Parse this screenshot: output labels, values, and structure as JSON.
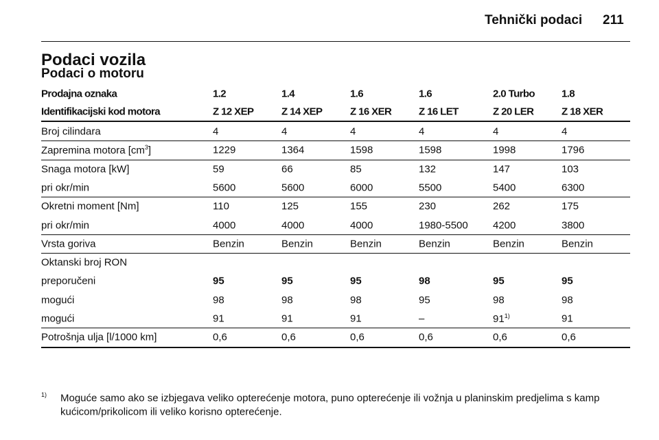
{
  "header": {
    "section": "Tehnički podaci",
    "page": "211"
  },
  "title": "Podaci vozila",
  "subtitle": "Podaci o motoru",
  "table": {
    "head": [
      {
        "label": "Prodajna oznaka",
        "values": [
          "1.2",
          "1.4",
          "1.6",
          "1.6",
          "2.0 Turbo",
          "1.8"
        ]
      },
      {
        "label": "Identifikacijski kod motora",
        "values": [
          "Z 12 XEP",
          "Z 14 XEP",
          "Z 16 XER",
          "Z 16 LET",
          "Z 20 LER",
          "Z 18 XER"
        ]
      }
    ],
    "groups": [
      [
        {
          "label": "Broj cilindara",
          "values": [
            "4",
            "4",
            "4",
            "4",
            "4",
            "4"
          ]
        }
      ],
      [
        {
          "label": {
            "text": "Zapremina motora [cm",
            "sup": "3",
            "after": "]"
          },
          "values": [
            "1229",
            "1364",
            "1598",
            "1598",
            "1998",
            "1796"
          ]
        }
      ],
      [
        {
          "label": "Snaga motora [kW]",
          "values": [
            "59",
            "66",
            "85",
            "132",
            "147",
            "103"
          ]
        },
        {
          "label": "pri okr/min",
          "values": [
            "5600",
            "5600",
            "6000",
            "5500",
            "5400",
            "6300"
          ]
        }
      ],
      [
        {
          "label": "Okretni moment [Nm]",
          "values": [
            "110",
            "125",
            "155",
            "230",
            "262",
            "175"
          ]
        },
        {
          "label": "pri okr/min",
          "values": [
            "4000",
            "4000",
            "4000",
            "1980-5500",
            "4200",
            "3800"
          ]
        }
      ],
      [
        {
          "label": "Vrsta goriva",
          "values": [
            "Benzin",
            "Benzin",
            "Benzin",
            "Benzin",
            "Benzin",
            "Benzin"
          ]
        }
      ],
      [
        {
          "label": "Oktanski broj RON",
          "values": []
        },
        {
          "label": "preporučeni",
          "bold": true,
          "values": [
            "95",
            "95",
            "95",
            "98",
            "95",
            "95"
          ]
        },
        {
          "label": "mogući",
          "values": [
            "98",
            "98",
            "98",
            "95",
            "98",
            "98"
          ]
        },
        {
          "label": "mogući",
          "values": [
            "91",
            "91",
            "91",
            "–",
            {
              "text": "91",
              "sup": "1)"
            },
            "91"
          ]
        }
      ],
      [
        {
          "label": "Potrošnja ulja [l/1000 km]",
          "values": [
            "0,6",
            "0,6",
            "0,6",
            "0,6",
            "0,6",
            "0,6"
          ]
        }
      ]
    ]
  },
  "footnote": {
    "marker": "1)",
    "lines": [
      "Moguće samo ako se izbjegava veliko opterećenje motora, puno opterećenje ili vožnja u planinskim predjelima s kamp",
      "kućicom/prikolicom ili veliko korisno opterećenje."
    ]
  }
}
